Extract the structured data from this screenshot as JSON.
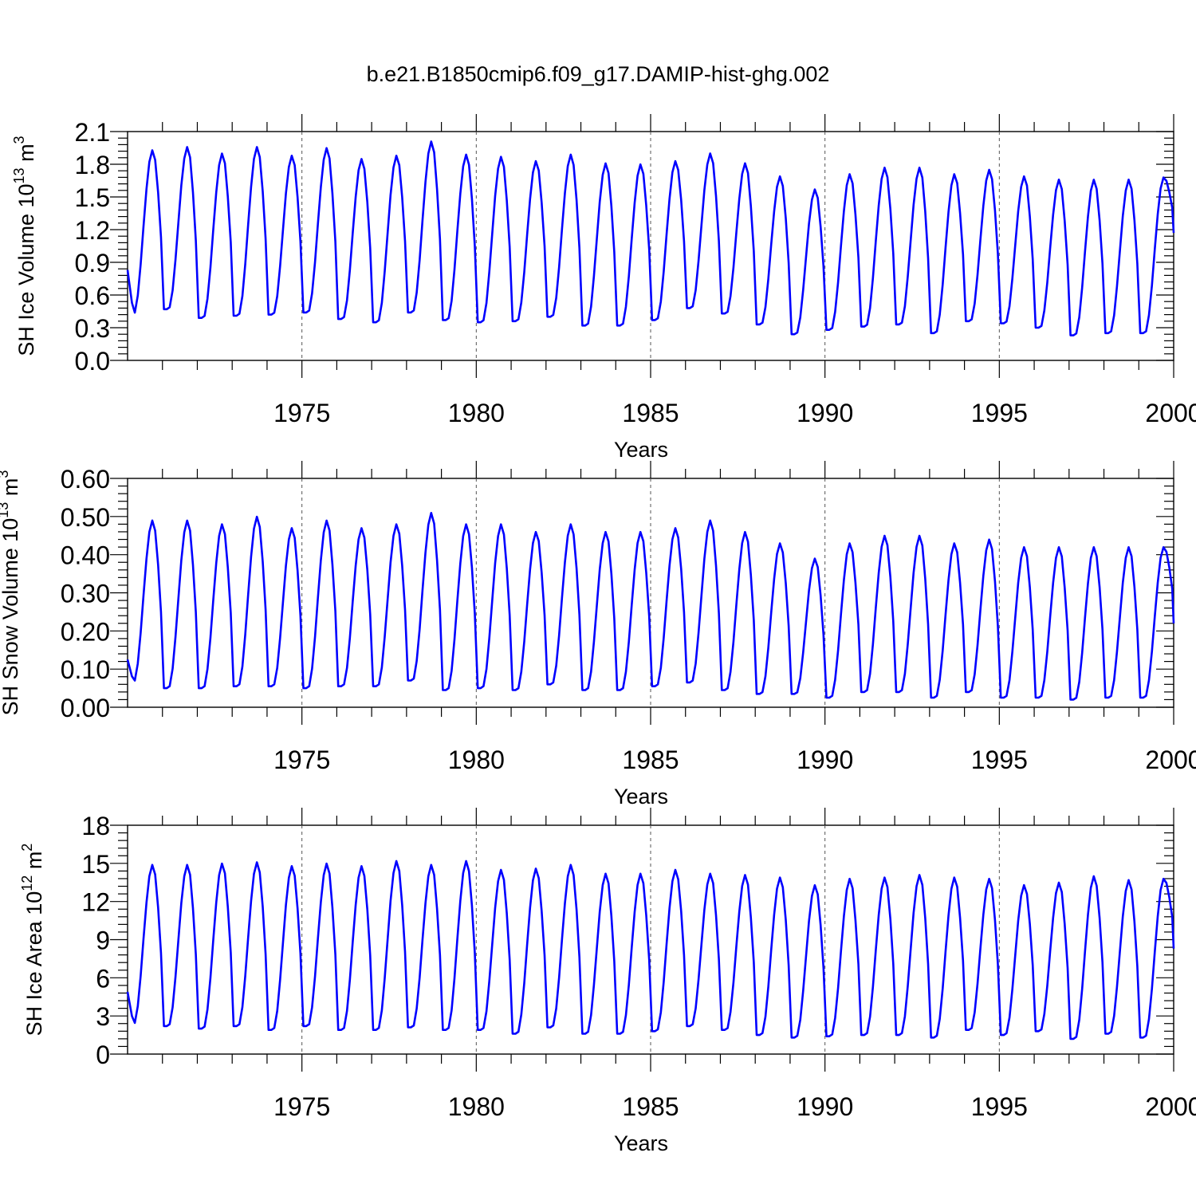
{
  "title": "b.e21.B1850cmip6.f09_g17.DAMIP-hist-ghg.002",
  "chart_data": [
    {
      "type": "line",
      "ylabel_main": "SH Ice Volume 10",
      "ylabel_exp": "13",
      "ylabel_unit": " m",
      "ylabel_unit_exp": "3",
      "xlabel": "Years",
      "xlim": [
        1970,
        2000
      ],
      "ylim": [
        0,
        2.1
      ],
      "yticks": [
        "0.0",
        "0.3",
        "0.6",
        "0.9",
        "1.2",
        "1.5",
        "1.8",
        "2.1"
      ],
      "xticks": [
        "1975",
        "1980",
        "1985",
        "1990",
        "1995",
        "2000"
      ],
      "color": "#0000ff",
      "annual_max": [
        1.93,
        1.96,
        1.9,
        1.96,
        1.88,
        1.95,
        1.85,
        1.88,
        2.01,
        1.89,
        1.87,
        1.83,
        1.89,
        1.81,
        1.8,
        1.83,
        1.9,
        1.81,
        1.69,
        1.57,
        1.71,
        1.77,
        1.77,
        1.71,
        1.75,
        1.69,
        1.66,
        1.66,
        1.66,
        1.68
      ],
      "annual_min": [
        0.42,
        0.47,
        0.39,
        0.41,
        0.42,
        0.44,
        0.38,
        0.35,
        0.44,
        0.37,
        0.35,
        0.36,
        0.4,
        0.32,
        0.32,
        0.37,
        0.48,
        0.43,
        0.33,
        0.24,
        0.28,
        0.31,
        0.33,
        0.25,
        0.36,
        0.34,
        0.3,
        0.23,
        0.25,
        0.25
      ],
      "start_value": 0.83,
      "end_value": 1.17
    },
    {
      "type": "line",
      "ylabel_main": "SH Snow Volume 10",
      "ylabel_exp": "13",
      "ylabel_unit": " m",
      "ylabel_unit_exp": "3",
      "xlabel": "Years",
      "xlim": [
        1970,
        2000
      ],
      "ylim": [
        0,
        0.6
      ],
      "yticks": [
        "0.00",
        "0.10",
        "0.20",
        "0.30",
        "0.40",
        "0.50",
        "0.60"
      ],
      "xticks": [
        "1975",
        "1980",
        "1985",
        "1990",
        "1995",
        "2000"
      ],
      "color": "#0000ff",
      "annual_max": [
        0.49,
        0.49,
        0.48,
        0.5,
        0.47,
        0.49,
        0.47,
        0.48,
        0.51,
        0.48,
        0.48,
        0.46,
        0.48,
        0.46,
        0.46,
        0.47,
        0.49,
        0.46,
        0.43,
        0.39,
        0.43,
        0.45,
        0.45,
        0.43,
        0.44,
        0.42,
        0.42,
        0.42,
        0.42,
        0.42
      ],
      "annual_min": [
        0.065,
        0.05,
        0.05,
        0.055,
        0.055,
        0.05,
        0.055,
        0.055,
        0.07,
        0.045,
        0.05,
        0.045,
        0.06,
        0.045,
        0.045,
        0.055,
        0.065,
        0.045,
        0.035,
        0.035,
        0.025,
        0.04,
        0.04,
        0.025,
        0.04,
        0.025,
        0.025,
        0.02,
        0.025,
        0.025
      ],
      "start_value": 0.125,
      "end_value": 0.22
    },
    {
      "type": "line",
      "ylabel_main": "SH Ice Area 10",
      "ylabel_exp": "12",
      "ylabel_unit": " m",
      "ylabel_unit_exp": "2",
      "xlabel": "Years",
      "xlim": [
        1970,
        2000
      ],
      "ylim": [
        0,
        18
      ],
      "yticks": [
        "0",
        "3",
        "6",
        "9",
        "12",
        "15",
        "18"
      ],
      "xticks": [
        "1975",
        "1980",
        "1985",
        "1990",
        "1995",
        "2000"
      ],
      "color": "#0000ff",
      "annual_max": [
        14.9,
        14.9,
        15.0,
        15.1,
        14.8,
        15.0,
        14.8,
        15.2,
        14.9,
        15.2,
        14.5,
        14.6,
        14.9,
        14.2,
        14.2,
        14.5,
        14.2,
        14.1,
        13.9,
        13.3,
        13.8,
        13.9,
        14.1,
        13.9,
        13.8,
        13.3,
        13.5,
        14.0,
        13.7,
        13.8
      ],
      "annual_min": [
        2.3,
        2.2,
        2.0,
        2.2,
        1.9,
        2.2,
        1.9,
        1.9,
        2.1,
        1.9,
        1.9,
        1.6,
        2.1,
        1.6,
        1.6,
        1.8,
        2.2,
        1.9,
        1.5,
        1.3,
        1.4,
        1.5,
        1.5,
        1.3,
        1.9,
        1.5,
        1.8,
        1.2,
        1.6,
        1.3
      ],
      "start_value": 4.9,
      "end_value": 8.3
    }
  ]
}
